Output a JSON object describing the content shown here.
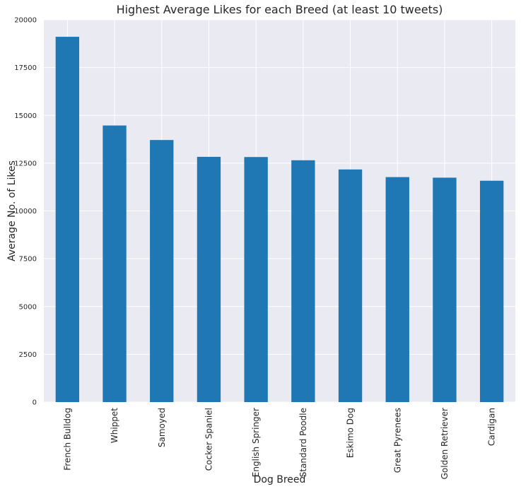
{
  "chart_data": {
    "type": "bar",
    "title": "Highest Average Likes for each Breed (at least 10 tweets)",
    "xlabel": "Dog Breed",
    "ylabel": "Average No. of Likes",
    "categories": [
      "French Bulldog",
      "Whippet",
      "Samoyed",
      "Cocker Spaniel",
      "English Springer",
      "Standard Poodle",
      "Eskimo Dog",
      "Great Pyrenees",
      "Golden Retriever",
      "Cardigan"
    ],
    "values": [
      19110,
      14470,
      13710,
      12830,
      12820,
      12650,
      12170,
      11770,
      11740,
      11580
    ],
    "ylim": [
      0,
      20000
    ],
    "yticks": [
      0,
      2500,
      5000,
      7500,
      10000,
      12500,
      15000,
      17500,
      20000
    ],
    "grid": true,
    "legend": "none",
    "colors": {
      "bar": "#1f77b4",
      "background": "#eaeaf2",
      "grid": "#ffffff",
      "text": "#262626"
    }
  }
}
